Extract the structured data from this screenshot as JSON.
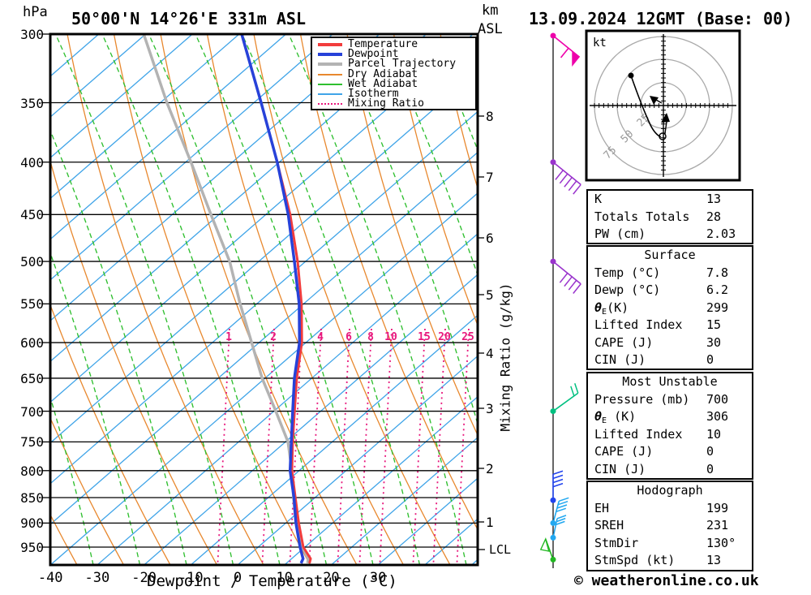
{
  "header": {
    "pressure_unit": "hPa",
    "title": "50°00'N 14°26'E 331m ASL",
    "datetime": "13.09.2024 12GMT (Base: 00)",
    "alt_unit_km": "km",
    "alt_unit_asl": "ASL"
  },
  "right_axis": {
    "label": "Mixing Ratio (g/kg)",
    "lcl_label": "LCL"
  },
  "footer": {
    "xaxis_title": "Dewpoint / Temperature (°C)",
    "copyright": "© weatheronline.co.uk"
  },
  "hodograph_panel": {
    "unit_label": "kt",
    "ring_labels": [
      "25",
      "50",
      "75"
    ]
  },
  "legend": {
    "items": [
      {
        "label": "Temperature",
        "color": "#f23c3c",
        "style": "thick"
      },
      {
        "label": "Dewpoint",
        "color": "#2742d9",
        "style": "thick"
      },
      {
        "label": "Parcel Trajectory",
        "color": "#b3b3b3",
        "style": "thick"
      },
      {
        "label": "Dry Adiabat",
        "color": "#e8882e",
        "style": "thin"
      },
      {
        "label": "Wet Adiabat",
        "color": "#2fbf2f",
        "style": "thin"
      },
      {
        "label": "Isotherm",
        "color": "#3fa4e8",
        "style": "thin"
      },
      {
        "label": "Mixing Ratio",
        "color": "#e8197d",
        "style": "dotted"
      }
    ]
  },
  "tables": {
    "indices": {
      "rows": [
        [
          "K",
          "13"
        ],
        [
          "Totals Totals",
          "28"
        ],
        [
          "PW (cm)",
          "2.03"
        ]
      ]
    },
    "surface": {
      "header": "Surface",
      "rows": [
        [
          "Temp (°C)",
          "7.8"
        ],
        [
          "Dewp (°C)",
          "6.2"
        ],
        [
          "θE(K)",
          "299"
        ],
        [
          "Lifted Index",
          "15"
        ],
        [
          "CAPE (J)",
          "30"
        ],
        [
          "CIN (J)",
          "0"
        ]
      ]
    },
    "most_unstable": {
      "header": "Most Unstable",
      "rows": [
        [
          "Pressure (mb)",
          "700"
        ],
        [
          "θE (K)",
          "306"
        ],
        [
          "Lifted Index",
          "10"
        ],
        [
          "CAPE (J)",
          "0"
        ],
        [
          "CIN (J)",
          "0"
        ]
      ]
    },
    "hodograph": {
      "header": "Hodograph",
      "rows": [
        [
          "EH",
          "199"
        ],
        [
          "SREH",
          "231"
        ],
        [
          "StmDir",
          "130°"
        ],
        [
          "StmSpd (kt)",
          "13"
        ]
      ]
    }
  },
  "chart_data": {
    "type": "skewt-sounding",
    "title": "50°00'N 14°26'E 331m ASL",
    "valid_time": "13.09.2024 12GMT",
    "base_run": "00",
    "pressure_axis": {
      "unit": "hPa",
      "scale": "log",
      "ticks": [
        300,
        350,
        400,
        450,
        500,
        550,
        600,
        650,
        700,
        750,
        800,
        850,
        900,
        950
      ],
      "bottom_hpa": 988
    },
    "temperature_axis": {
      "unit": "°C",
      "ticks": [
        -40,
        -30,
        -20,
        -10,
        0,
        10,
        20,
        30
      ],
      "title": "Dewpoint / Temperature (°C)"
    },
    "altitude_axis": {
      "unit": "km ASL",
      "ticks": [
        1,
        2,
        3,
        4,
        5,
        6,
        7,
        8
      ],
      "lcl_marker": "LCL"
    },
    "mixing_ratio": {
      "unit": "g/kg",
      "labels": [
        "1",
        "2",
        "4",
        "6",
        "8",
        "10",
        "15",
        "20",
        "25"
      ]
    },
    "values_are_estimates": true,
    "series": {
      "temperature_c": [
        [
          985,
          8.1
        ],
        [
          975,
          7.8
        ],
        [
          950,
          4.9
        ],
        [
          900,
          1.1
        ],
        [
          850,
          -2.6
        ],
        [
          800,
          -6.5
        ],
        [
          750,
          -9.7
        ],
        [
          700,
          -12.9
        ],
        [
          650,
          -16.3
        ],
        [
          600,
          -19.4
        ],
        [
          550,
          -24.0
        ],
        [
          500,
          -29.8
        ],
        [
          450,
          -36.9
        ],
        [
          400,
          -45.8
        ],
        [
          350,
          -56.2
        ],
        [
          300,
          -68.4
        ]
      ],
      "dewpoint_c": [
        [
          985,
          6.3
        ],
        [
          975,
          6.2
        ],
        [
          950,
          4.2
        ],
        [
          900,
          0.5
        ],
        [
          850,
          -2.9
        ],
        [
          800,
          -6.9
        ],
        [
          750,
          -10.0
        ],
        [
          700,
          -13.3
        ],
        [
          650,
          -16.8
        ],
        [
          600,
          -19.9
        ],
        [
          550,
          -24.5
        ],
        [
          500,
          -30.5
        ],
        [
          450,
          -37.3
        ],
        [
          400,
          -45.8
        ],
        [
          350,
          -56.2
        ],
        [
          300,
          -68.4
        ]
      ],
      "parcel_c": [
        [
          985,
          7.7
        ],
        [
          975,
          7.3
        ],
        [
          950,
          4.7
        ],
        [
          900,
          0.5
        ],
        [
          850,
          -3.0
        ],
        [
          800,
          -6.5
        ],
        [
          750,
          -10.7
        ],
        [
          700,
          -16.9
        ],
        [
          650,
          -23.7
        ],
        [
          600,
          -30.1
        ],
        [
          550,
          -37.1
        ],
        [
          500,
          -44.3
        ],
        [
          450,
          -53.8
        ],
        [
          400,
          -64.2
        ],
        [
          350,
          -76.3
        ],
        [
          300,
          -89.3
        ]
      ]
    },
    "wind_barbs": {
      "note": "speed/direction estimated from barb glyphs",
      "levels": [
        {
          "level_hpa": 300,
          "dir_deg": 135,
          "speed_kt": 60,
          "color": "#ee00aa"
        },
        {
          "level_hpa": 400,
          "dir_deg": 135,
          "speed_kt": 50,
          "color": "#9933cc"
        },
        {
          "level_hpa": 500,
          "dir_deg": 135,
          "speed_kt": 45,
          "color": "#9933cc"
        },
        {
          "level_hpa": 700,
          "dir_deg": 45,
          "speed_kt": 20,
          "color": "#00c080"
        },
        {
          "level_hpa": 855,
          "dir_deg": 360,
          "speed_kt": 20,
          "color": "#2244ee"
        },
        {
          "level_hpa": 900,
          "dir_deg": 15,
          "speed_kt": 15,
          "color": "#22a8f0"
        },
        {
          "level_hpa": 930,
          "dir_deg": 15,
          "speed_kt": 10,
          "color": "#22a8f0"
        },
        {
          "level_hpa": 977,
          "dir_deg": 330,
          "speed_kt": 5,
          "color": "#22b822"
        }
      ]
    },
    "hodograph": {
      "unit": "kt",
      "rings_kt": [
        25,
        50,
        75
      ],
      "storm_dir_deg": 130,
      "storm_speed_kt": 13
    },
    "derived_indices": {
      "K": 13,
      "Totals_Totals": 28,
      "PW_cm": 2.03,
      "surface": {
        "temp_c": 7.8,
        "dewp_c": 6.2,
        "theta_e_k": 299,
        "lifted_index": 15,
        "cape_j": 30,
        "cin_j": 0
      },
      "most_unstable": {
        "pressure_mb": 700,
        "theta_e_k": 306,
        "lifted_index": 10,
        "cape_j": 0,
        "cin_j": 0
      },
      "hodograph": {
        "EH": 199,
        "SREH": 231,
        "storm_dir": "130°",
        "storm_speed_kt": 13
      }
    }
  }
}
